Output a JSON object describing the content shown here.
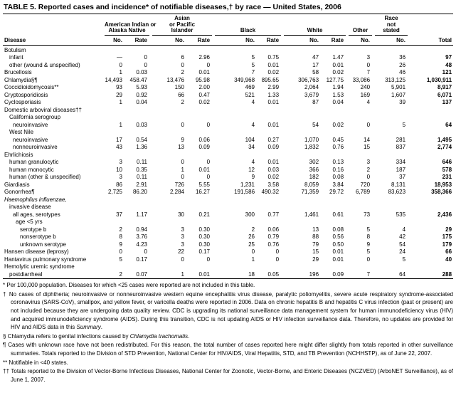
{
  "title": "TABLE 5. Reported cases and incidence* of notifiable diseases,† by race — United States, 2006",
  "table": {
    "header": {
      "disease_label": "Disease",
      "groups": [
        {
          "lines": [
            "American Indian or",
            "Alaska Native"
          ],
          "cols": [
            "No.",
            "Rate"
          ]
        },
        {
          "lines": [
            "Asian",
            "or Pacific",
            "Islander"
          ],
          "cols": [
            "No.",
            "Rate"
          ]
        },
        {
          "lines": [
            "Black"
          ],
          "cols": [
            "No.",
            "Rate"
          ]
        },
        {
          "lines": [
            "White"
          ],
          "cols": [
            "No.",
            "Rate"
          ]
        },
        {
          "lines": [
            "Other"
          ],
          "cols": [
            "No."
          ]
        },
        {
          "lines": [
            "Race",
            "not",
            "stated"
          ],
          "cols": [
            "No."
          ]
        }
      ],
      "total_label": "Total"
    },
    "rows": [
      {
        "label": "Botulism",
        "indent": 0,
        "cells": []
      },
      {
        "label": "infant",
        "indent": 1,
        "cells": [
          "—",
          "0",
          "6",
          "2.96",
          "5",
          "0.75",
          "47",
          "1.47",
          "3",
          "36",
          "97"
        ]
      },
      {
        "label": "other (wound & unspecified)",
        "indent": 1,
        "cells": [
          "0",
          "0",
          "0",
          "0",
          "5",
          "0.01",
          "17",
          "0.01",
          "0",
          "26",
          "48"
        ]
      },
      {
        "label": "Brucellosis",
        "indent": 0,
        "cells": [
          "1",
          "0.03",
          "2",
          "0.01",
          "7",
          "0.02",
          "58",
          "0.02",
          "7",
          "46",
          "121"
        ]
      },
      {
        "label": "Chlamydia§¶",
        "indent": 0,
        "cells": [
          "14,493",
          "458.47",
          "13,476",
          "95.98",
          "349,968",
          "895.65",
          "306,763",
          "127.75",
          "33,086",
          "313,125",
          "1,030,911"
        ]
      },
      {
        "label": "Coccidioidomycosis**",
        "indent": 0,
        "cells": [
          "93",
          "5.93",
          "150",
          "2.00",
          "469",
          "2.99",
          "2,064",
          "1.94",
          "240",
          "5,901",
          "8,917"
        ]
      },
      {
        "label": "Cryptosporidiosis",
        "indent": 0,
        "cells": [
          "29",
          "0.92",
          "66",
          "0.47",
          "521",
          "1.33",
          "3,679",
          "1.53",
          "169",
          "1,607",
          "6,071"
        ]
      },
      {
        "label": "Cyclosporiasis",
        "indent": 0,
        "cells": [
          "1",
          "0.04",
          "2",
          "0.02",
          "4",
          "0.01",
          "87",
          "0.04",
          "4",
          "39",
          "137"
        ]
      },
      {
        "label": "Domestic arboviral diseases††",
        "indent": 0,
        "cells": []
      },
      {
        "label": "California serogroup",
        "indent": 1,
        "cells": []
      },
      {
        "label": "neuroinvasive",
        "indent": 2,
        "cells": [
          "1",
          "0.03",
          "0",
          "0",
          "4",
          "0.01",
          "54",
          "0.02",
          "0",
          "5",
          "64"
        ]
      },
      {
        "label": "West Nile",
        "indent": 1,
        "cells": []
      },
      {
        "label": "neuroinvasive",
        "indent": 2,
        "cells": [
          "17",
          "0.54",
          "9",
          "0.06",
          "104",
          "0.27",
          "1,070",
          "0.45",
          "14",
          "281",
          "1,495"
        ]
      },
      {
        "label": "nonneuroinvasive",
        "indent": 2,
        "cells": [
          "43",
          "1.36",
          "13",
          "0.09",
          "34",
          "0.09",
          "1,832",
          "0.76",
          "15",
          "837",
          "2,774"
        ]
      },
      {
        "label": "Ehrlichiosis",
        "indent": 0,
        "cells": []
      },
      {
        "label": "human granulocytic",
        "indent": 1,
        "cells": [
          "3",
          "0.11",
          "0",
          "0",
          "4",
          "0.01",
          "302",
          "0.13",
          "3",
          "334",
          "646"
        ]
      },
      {
        "label": "human monocytic",
        "indent": 1,
        "cells": [
          "10",
          "0.35",
          "1",
          "0.01",
          "12",
          "0.03",
          "366",
          "0.16",
          "2",
          "187",
          "578"
        ]
      },
      {
        "label": "human (other & unspecified)",
        "indent": 1,
        "cells": [
          "3",
          "0.11",
          "0",
          "0",
          "9",
          "0.02",
          "182",
          "0.08",
          "0",
          "37",
          "231"
        ]
      },
      {
        "label": "Giardiasis",
        "indent": 0,
        "cells": [
          "86",
          "2.91",
          "726",
          "5.55",
          "1,231",
          "3.58",
          "8,059",
          "3.84",
          "720",
          "8,131",
          "18,953"
        ]
      },
      {
        "label": "Gonorrhea¶",
        "indent": 0,
        "cells": [
          "2,725",
          "86.20",
          "2,284",
          "16.27",
          "191,586",
          "490.32",
          "71,359",
          "29.72",
          "6,789",
          "83,623",
          "358,366"
        ]
      },
      {
        "label": "Haemophilus influenzae,",
        "indent": 0,
        "italic": true,
        "cells": []
      },
      {
        "label": "invasive disease",
        "indent": 1,
        "cells": []
      },
      {
        "label": "all ages, serotypes",
        "indent": 2,
        "cells": [
          "37",
          "1.17",
          "30",
          "0.21",
          "300",
          "0.77",
          "1,461",
          "0.61",
          "73",
          "535",
          "2,436"
        ]
      },
      {
        "label": "age <5 yrs",
        "indent": 3,
        "cells": []
      },
      {
        "label": "serotype b",
        "indent": 4,
        "cells": [
          "2",
          "0.94",
          "3",
          "0.30",
          "2",
          "0.06",
          "13",
          "0.08",
          "5",
          "4",
          "29"
        ]
      },
      {
        "label": "nonserotype b",
        "indent": 4,
        "cells": [
          "8",
          "3.76",
          "3",
          "0.30",
          "26",
          "0.79",
          "88",
          "0.56",
          "8",
          "42",
          "175"
        ]
      },
      {
        "label": "unknown serotype",
        "indent": 4,
        "cells": [
          "9",
          "4.23",
          "3",
          "0.30",
          "25",
          "0.76",
          "79",
          "0.50",
          "9",
          "54",
          "179"
        ]
      },
      {
        "label": "Hansen disease (leprosy)",
        "indent": 0,
        "cells": [
          "0",
          "0",
          "22",
          "0.17",
          "0",
          "0",
          "15",
          "0.01",
          "5",
          "24",
          "66"
        ]
      },
      {
        "label": "Hantavirus pulmonary syndrome",
        "indent": 0,
        "cells": [
          "5",
          "0.17",
          "0",
          "0",
          "1",
          "0",
          "29",
          "0.01",
          "0",
          "5",
          "40"
        ]
      },
      {
        "label": "Hemolytic uremic syndrome",
        "indent": 0,
        "cells": []
      },
      {
        "label": "postdiarrheal",
        "indent": 1,
        "cells": [
          "2",
          "0.07",
          "1",
          "0.01",
          "18",
          "0.05",
          "196",
          "0.09",
          "7",
          "64",
          "288"
        ]
      }
    ]
  },
  "footnotes": [
    {
      "marker": "*",
      "segments": [
        {
          "text": "Per 100,000 population. Diseases for which <25 cases were reported are not included in this table."
        }
      ]
    },
    {
      "marker": "†",
      "segments": [
        {
          "text": "No cases of diphtheria; neuroinvasive or nonneuroinvasive western equine encephalitis virus disease, paralytic poliomyelitis, severe acute respiratory syndrome-associated coronavirus (SARS-CoV), smallpox, and yellow fever, or varicella deaths were reported in 2006. Data on chronic hepatitis B and hepatitis C virus infection (past or present) are not included because they are undergoing data quality review. CDC is upgrading its national surveillance data management system for human immunodeficiency virus (HIV) and acquired immunodeficiency syndrome (AIDS). During this transition, CDC is not updating AIDS or HIV infection surveillance data. Therefore, no updates are provided for HIV and AIDS data in this "
        },
        {
          "text": "Summary",
          "italic": true
        },
        {
          "text": "."
        }
      ]
    },
    {
      "marker": "§",
      "segments": [
        {
          "text": "Chlamydia refers to genital infections caused by "
        },
        {
          "text": "Chlamydia trachomatis",
          "italic": true
        },
        {
          "text": "."
        }
      ]
    },
    {
      "marker": "¶",
      "segments": [
        {
          "text": "Cases with unknown race have not been redistributed. For this reason, the total number of cases reported here might differ slightly from totals reported in other surveillance summaries. Totals reported to the Division of STD Prevention, National Center for HIV/AIDS, Viral Hepatitis, STD, and TB Prevention (NCHHSTP), as of June 22, 2007."
        }
      ]
    },
    {
      "marker": "**",
      "segments": [
        {
          "text": "Notifiable in <40 states."
        }
      ]
    },
    {
      "marker": "††",
      "segments": [
        {
          "text": "Totals reported to the Division of Vector-Borne Infectious Diseases, National Center for Zoonotic, Vector-Borne, and Enteric Diseases (NCZVED) (ArboNET Surveillance), as of June 1, 2007."
        }
      ]
    }
  ]
}
